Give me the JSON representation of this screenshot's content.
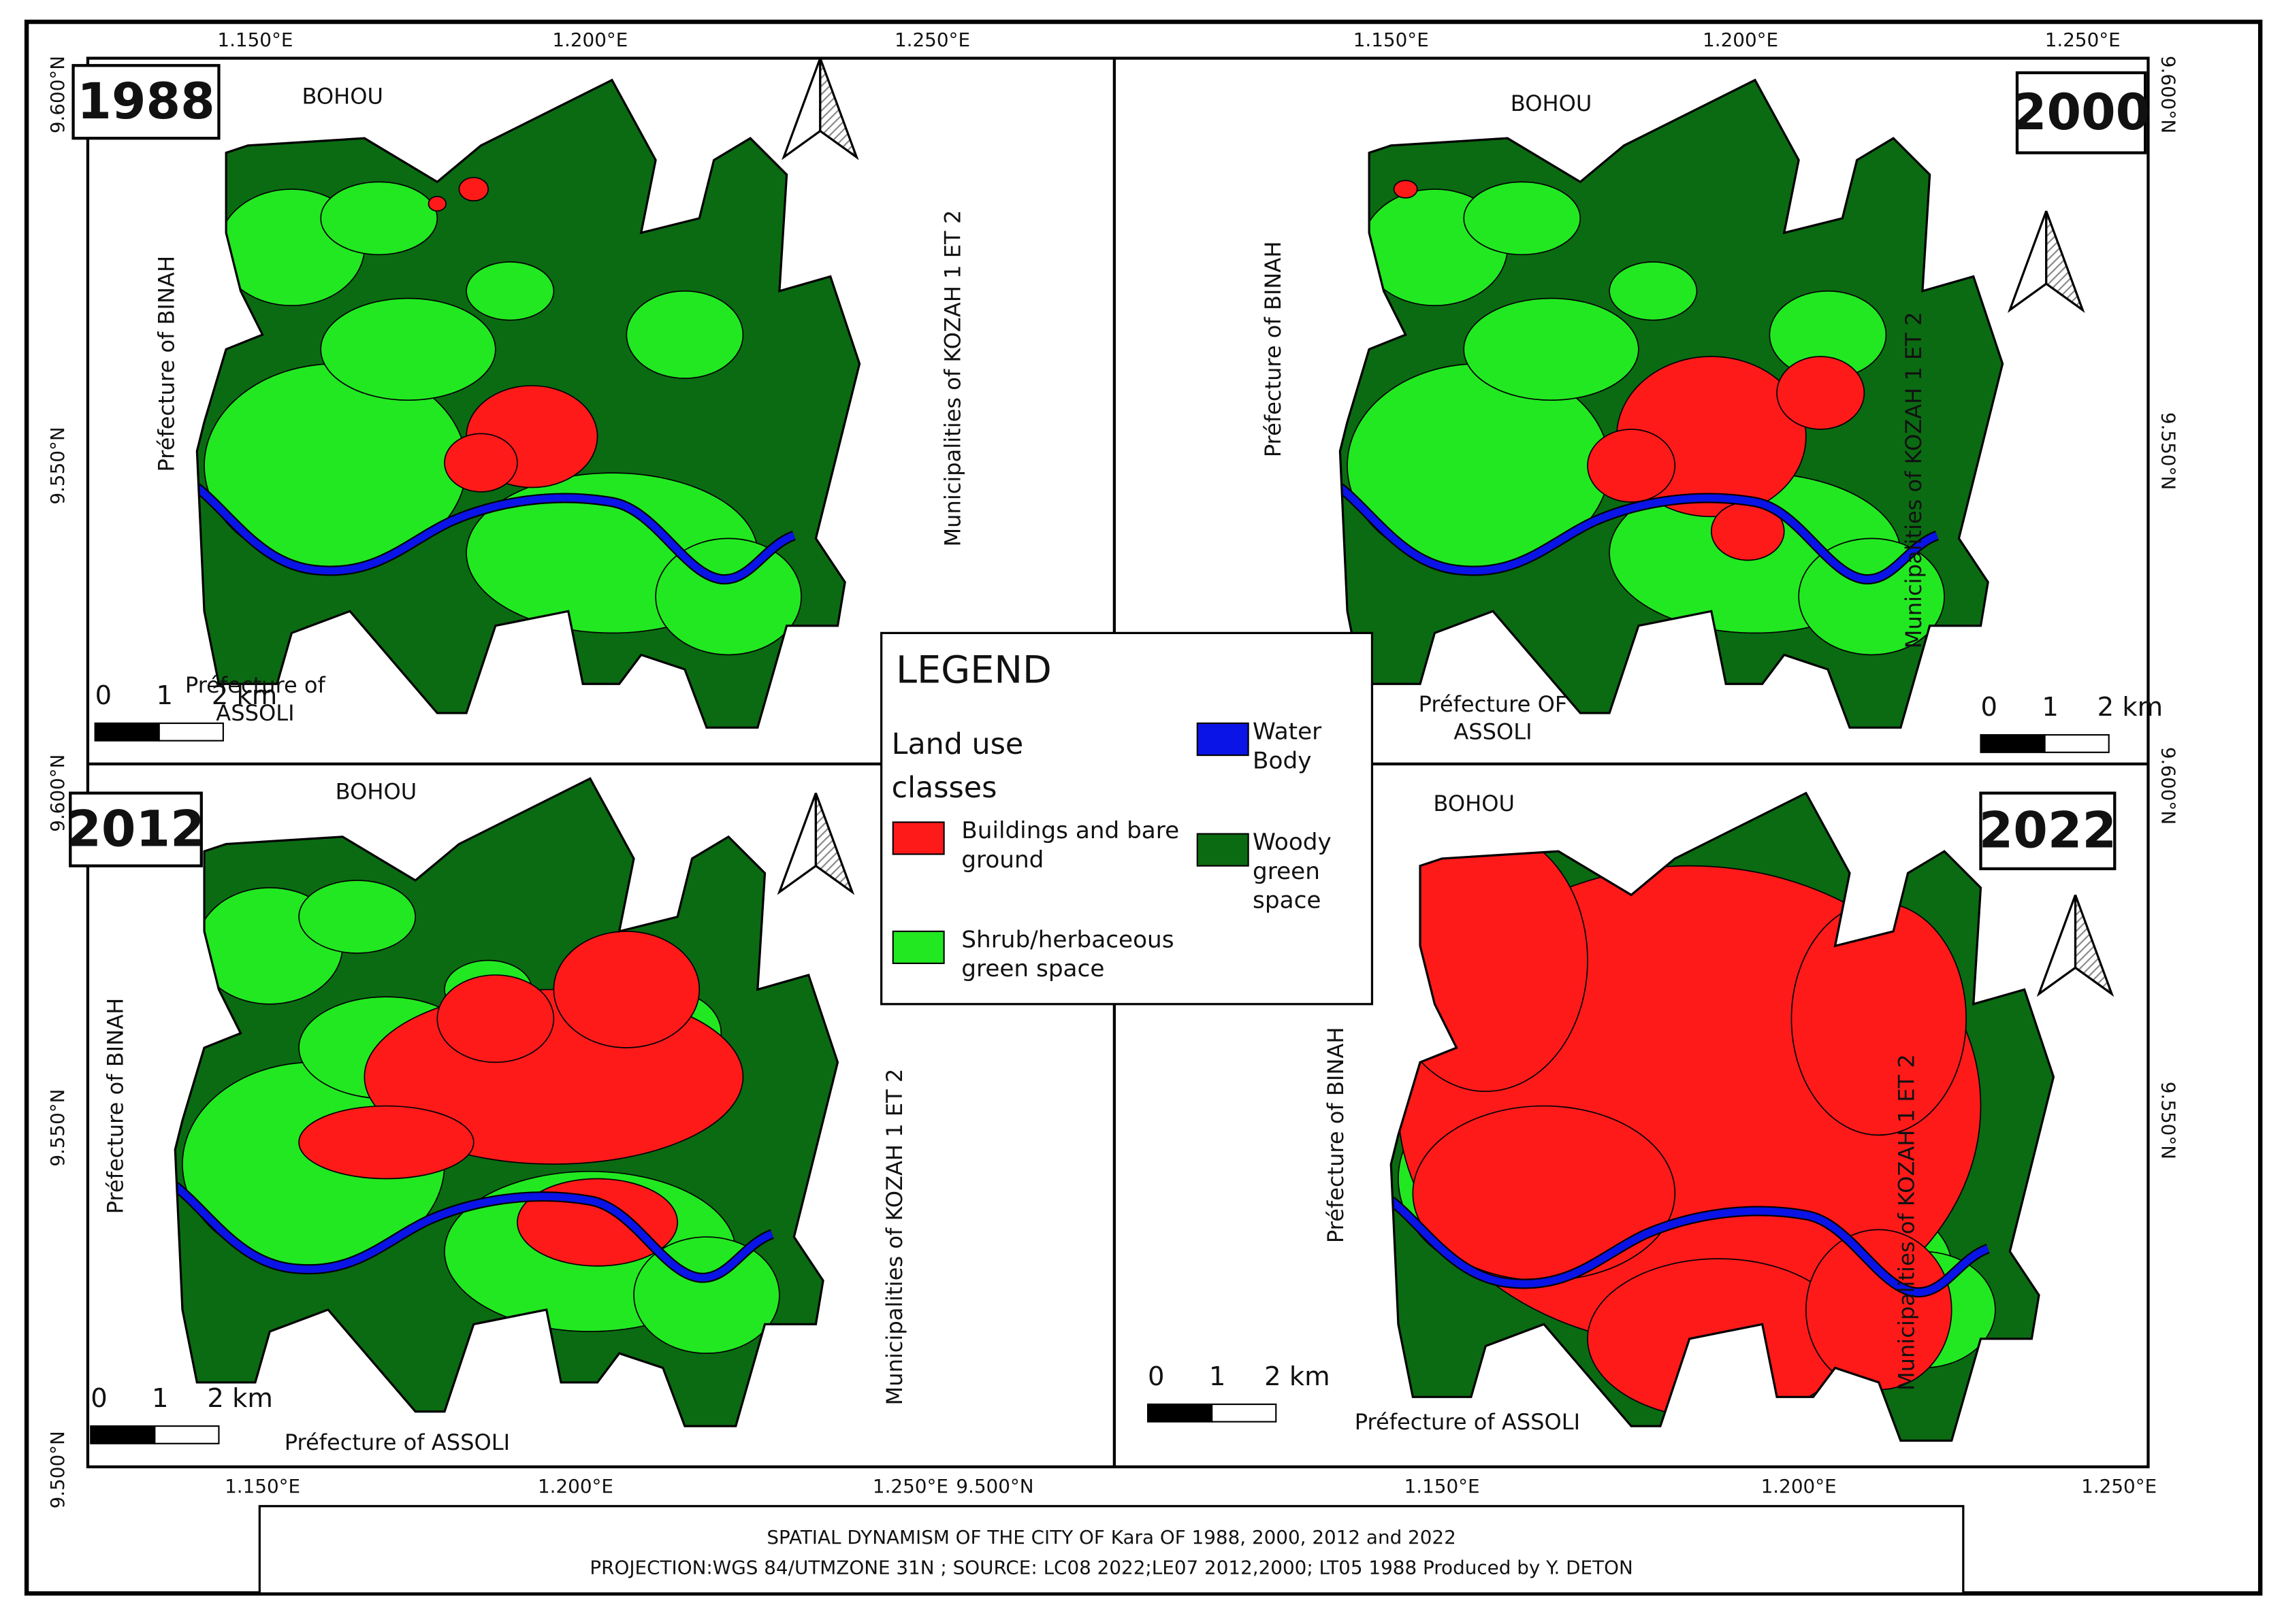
{
  "coordinates": {
    "top_left": [
      "1.150°E",
      "1.200°E",
      "1.250°E"
    ],
    "top_right": [
      "1.150°E",
      "1.200°E",
      "1.250°E"
    ],
    "bottom_left": [
      "1.150°E",
      "1.200°E",
      "1.250°E"
    ],
    "bottom_left_extra": "9.500°N",
    "bottom_right": [
      "1.150°E",
      "1.200°E",
      "1.250°E"
    ],
    "left": [
      "9.600°N",
      "9.550°N",
      "9.600°N",
      "9.550°N",
      "9.500°N"
    ],
    "right": [
      "9.600°N",
      "9.550°N",
      "9.600°N",
      "9.550°N"
    ]
  },
  "panels": [
    {
      "year": "1988",
      "north_label": "BOHOU",
      "west_label": "Préfecture of BINAH",
      "east_label": "Municipalities of KOZAH 1 ET 2",
      "south_label": "Préfecture of ASSOLI",
      "scale": [
        "0",
        "1",
        "2 km"
      ]
    },
    {
      "year": "2000",
      "north_label": "BOHOU",
      "west_label": "Préfecture of BINAH",
      "east_label": "Municipalities of KOZAH 1 ET 2",
      "south_label": "Préfecture OF ASSOLI",
      "scale": [
        "0",
        "1",
        "2 km"
      ]
    },
    {
      "year": "2012",
      "north_label": "BOHOU",
      "west_label": "Préfecture of BINAH",
      "east_label": "Municipalities of KOZAH 1 ET 2",
      "south_label": "Préfecture  of ASSOLI",
      "scale": [
        "0",
        "1",
        "2 km"
      ]
    },
    {
      "year": "2022",
      "north_label": "BOHOU",
      "west_label": "Préfecture of BINAH",
      "east_label": "Municipalities of KOZAH 1 ET 2",
      "south_label": "Préfecture  of ASSOLI",
      "scale": [
        "0",
        "1",
        "2 km"
      ]
    }
  ],
  "legend": {
    "title": "LEGEND",
    "subtitle": "Land use classes",
    "classes": [
      {
        "label": "Buildings and bare ground",
        "color": "#ff1a1a"
      },
      {
        "label": "Shrub/herbaceous green space",
        "color": "#22e822"
      },
      {
        "label": "Water Body",
        "color": "#0a14e6"
      },
      {
        "label": "Woody green space",
        "color": "#0b6b12"
      }
    ]
  },
  "title_block": {
    "line1": "SPATIAL DYNAMISM OF THE CITY OF Kara OF 1988, 2000, 2012 and 2022",
    "line2": "PROJECTION:WGS 84/UTMZONE 31N ; SOURCE: LC08 2022;LE07 2012,2000; LT05 1988  Produced by Y. DETON"
  }
}
